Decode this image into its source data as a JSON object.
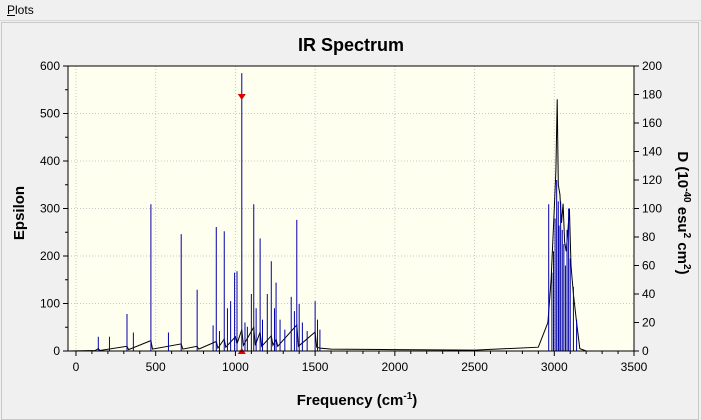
{
  "menubar": {
    "plots_label_first": "P",
    "plots_label_rest": "lots"
  },
  "colors": {
    "background": "#f0f0f0",
    "plot_area": "#fffff0",
    "grid": "#c8c8c8",
    "stick": "#0000a8",
    "envelope": "#000000",
    "marker": "#e00000"
  },
  "chart_data": {
    "type": "line",
    "title": "IR Spectrum",
    "xlabel_main": "Frequency (cm",
    "xlabel_sup": "-1",
    "xlabel_end": ")",
    "ylabel": "Epsilon",
    "y2label_parts": [
      "D (10",
      "-40",
      " esu",
      "2",
      " cm",
      "2",
      ")"
    ],
    "xlim": [
      -50,
      3500
    ],
    "ylim": [
      0,
      600
    ],
    "y2lim": [
      0,
      200
    ],
    "grid": true,
    "x_ticks": [
      0,
      500,
      1000,
      1500,
      2000,
      2500,
      3000,
      3500
    ],
    "y_ticks": [
      0,
      100,
      200,
      300,
      400,
      500,
      600
    ],
    "y2_ticks": [
      0,
      20,
      40,
      60,
      80,
      100,
      120,
      140,
      160,
      180,
      200
    ],
    "selected_frequency": 1040,
    "series": [
      {
        "kind": "sticks_D",
        "points": [
          [
            140,
            10
          ],
          [
            210,
            10
          ],
          [
            320,
            26
          ],
          [
            360,
            13
          ],
          [
            470,
            103
          ],
          [
            580,
            13
          ],
          [
            660,
            82
          ],
          [
            760,
            43
          ],
          [
            860,
            18
          ],
          [
            880,
            87
          ],
          [
            900,
            14
          ],
          [
            930,
            84
          ],
          [
            950,
            30
          ],
          [
            970,
            35
          ],
          [
            995,
            55
          ],
          [
            1010,
            56
          ],
          [
            1040,
            195
          ],
          [
            1060,
            20
          ],
          [
            1075,
            17
          ],
          [
            1100,
            40
          ],
          [
            1115,
            103
          ],
          [
            1130,
            30
          ],
          [
            1155,
            79
          ],
          [
            1170,
            22
          ],
          [
            1200,
            40
          ],
          [
            1225,
            63
          ],
          [
            1245,
            30
          ],
          [
            1255,
            48
          ],
          [
            1280,
            22
          ],
          [
            1310,
            15
          ],
          [
            1350,
            38
          ],
          [
            1370,
            28
          ],
          [
            1385,
            92
          ],
          [
            1400,
            33
          ],
          [
            1420,
            20
          ],
          [
            1450,
            14
          ],
          [
            1500,
            35
          ],
          [
            1515,
            22
          ],
          [
            1530,
            15
          ],
          [
            2965,
            103
          ],
          [
            2985,
            55
          ],
          [
            2995,
            70
          ],
          [
            3005,
            93
          ],
          [
            3015,
            120
          ],
          [
            3025,
            105
          ],
          [
            3030,
            88
          ],
          [
            3040,
            105
          ],
          [
            3050,
            85
          ],
          [
            3060,
            75
          ],
          [
            3070,
            60
          ],
          [
            3080,
            85
          ],
          [
            3090,
            100
          ],
          [
            3100,
            65
          ],
          [
            3120,
            45
          ],
          [
            3140,
            22
          ]
        ]
      },
      {
        "kind": "envelope_epsilon",
        "points": [
          [
            -50,
            0
          ],
          [
            120,
            1
          ],
          [
            140,
            5
          ],
          [
            150,
            1
          ],
          [
            320,
            10
          ],
          [
            330,
            3
          ],
          [
            470,
            22
          ],
          [
            480,
            4
          ],
          [
            660,
            15
          ],
          [
            670,
            4
          ],
          [
            760,
            10
          ],
          [
            770,
            4
          ],
          [
            880,
            20
          ],
          [
            890,
            6
          ],
          [
            930,
            25
          ],
          [
            940,
            8
          ],
          [
            1000,
            30
          ],
          [
            1010,
            15
          ],
          [
            1040,
            45
          ],
          [
            1050,
            12
          ],
          [
            1115,
            50
          ],
          [
            1125,
            12
          ],
          [
            1155,
            40
          ],
          [
            1165,
            10
          ],
          [
            1225,
            32
          ],
          [
            1235,
            12
          ],
          [
            1255,
            25
          ],
          [
            1265,
            10
          ],
          [
            1385,
            55
          ],
          [
            1395,
            10
          ],
          [
            1500,
            40
          ],
          [
            1510,
            8
          ],
          [
            1530,
            6
          ],
          [
            1600,
            4
          ],
          [
            2000,
            3
          ],
          [
            2500,
            2
          ],
          [
            2900,
            8
          ],
          [
            2960,
            60
          ],
          [
            2980,
            150
          ],
          [
            3000,
            300
          ],
          [
            3010,
            380
          ],
          [
            3018,
            530
          ],
          [
            3025,
            350
          ],
          [
            3035,
            330
          ],
          [
            3045,
            270
          ],
          [
            3055,
            310
          ],
          [
            3065,
            230
          ],
          [
            3075,
            210
          ],
          [
            3085,
            250
          ],
          [
            3095,
            300
          ],
          [
            3105,
            180
          ],
          [
            3120,
            120
          ],
          [
            3140,
            60
          ],
          [
            3160,
            5
          ],
          [
            3200,
            0
          ],
          [
            3500,
            0
          ]
        ]
      }
    ]
  }
}
